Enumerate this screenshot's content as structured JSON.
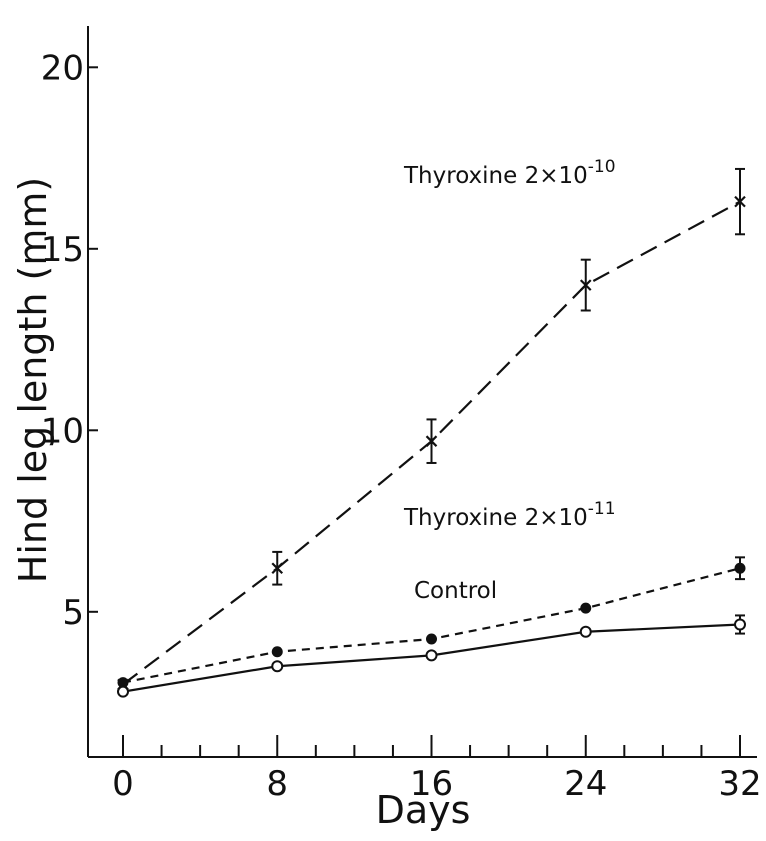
{
  "chart_data": {
    "type": "line",
    "xlabel": "Days",
    "ylabel": "Hind leg length (mm)",
    "xlim": [
      -3,
      33
    ],
    "ylim": [
      1,
      20
    ],
    "x_ticks": [
      0,
      8,
      16,
      24,
      32
    ],
    "x_tick_labels": [
      "0",
      "8",
      "16",
      "24",
      "32"
    ],
    "x_minor_step": 2,
    "y_ticks": [
      5,
      10,
      15,
      20
    ],
    "y_tick_labels": [
      "5",
      "10",
      "15",
      "20"
    ],
    "grid": false,
    "legend": "none (series labelled directly on the plot)",
    "series": [
      {
        "name": "Thyroxine 2×10⁻¹⁰",
        "label_base": "Thyroxine  2×10",
        "label_exp": "-10",
        "marker": "cross",
        "line_style": "long-dash",
        "x": [
          0,
          8,
          16,
          24,
          32
        ],
        "y": [
          3.0,
          6.2,
          9.7,
          14.0,
          16.3
        ],
        "error": [
          0,
          0.45,
          0.6,
          0.7,
          0.9
        ]
      },
      {
        "name": "Thyroxine 2×10⁻¹¹",
        "label_base": "Thyroxine  2×10",
        "label_exp": "-11",
        "marker": "filled-circle",
        "line_style": "short-dash",
        "x": [
          0,
          8,
          16,
          24,
          32
        ],
        "y": [
          3.05,
          3.9,
          4.25,
          5.1,
          6.2
        ],
        "error": [
          0,
          0,
          0,
          0,
          0.3
        ]
      },
      {
        "name": "Control",
        "label_base": "Control",
        "label_exp": "",
        "marker": "open-circle",
        "line_style": "solid",
        "x": [
          0,
          8,
          16,
          24,
          32
        ],
        "y": [
          2.8,
          3.5,
          3.8,
          4.45,
          4.65
        ],
        "error": [
          0,
          0,
          0,
          0,
          0.25
        ]
      }
    ]
  }
}
